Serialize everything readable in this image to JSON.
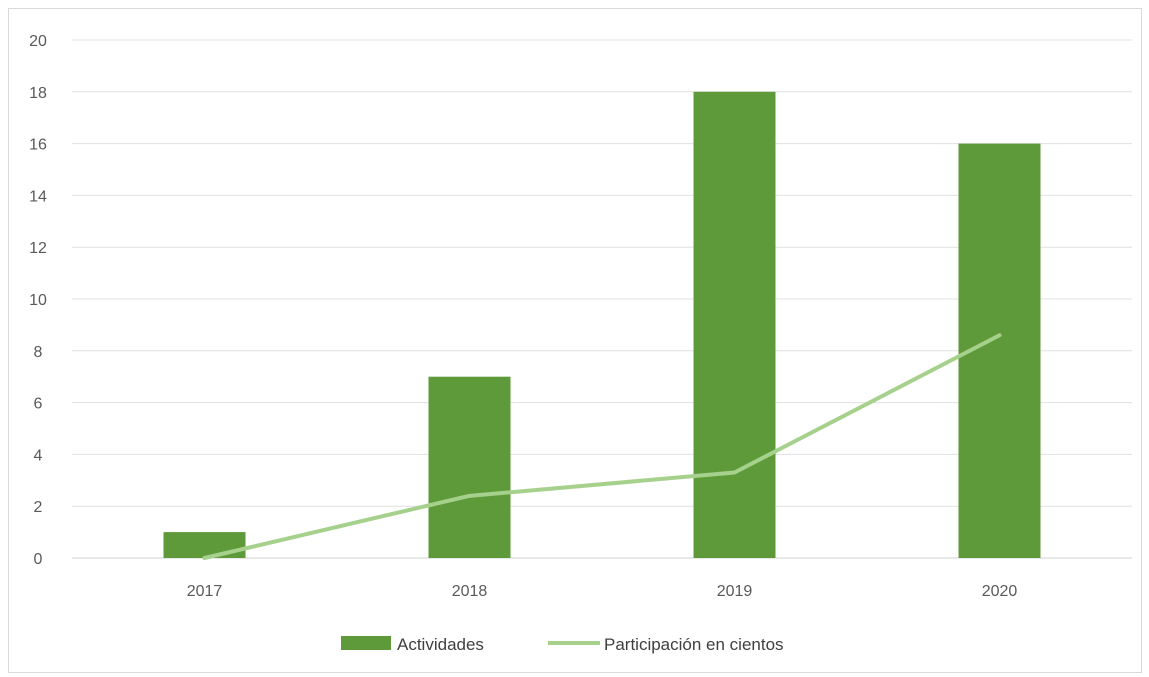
{
  "chart_data": {
    "type": "bar",
    "categories": [
      "2017",
      "2018",
      "2019",
      "2020"
    ],
    "series": [
      {
        "name": "Actividades",
        "type": "bar",
        "values": [
          1,
          7,
          18,
          16
        ]
      },
      {
        "name": "Participación en cientos",
        "type": "line",
        "values": [
          0,
          2.4,
          3.3,
          8.6
        ]
      }
    ],
    "y_ticks": [
      "0",
      "2",
      "4",
      "6",
      "8",
      "10",
      "12",
      "14",
      "16",
      "18",
      "20"
    ],
    "ylim": [
      0,
      20
    ],
    "grid": true,
    "legend_position": "bottom",
    "colors": {
      "bar": "#5e9a3a",
      "line": "#a6d18c",
      "grid": "#e0e0e0",
      "axis": "#d0d0d0"
    }
  }
}
